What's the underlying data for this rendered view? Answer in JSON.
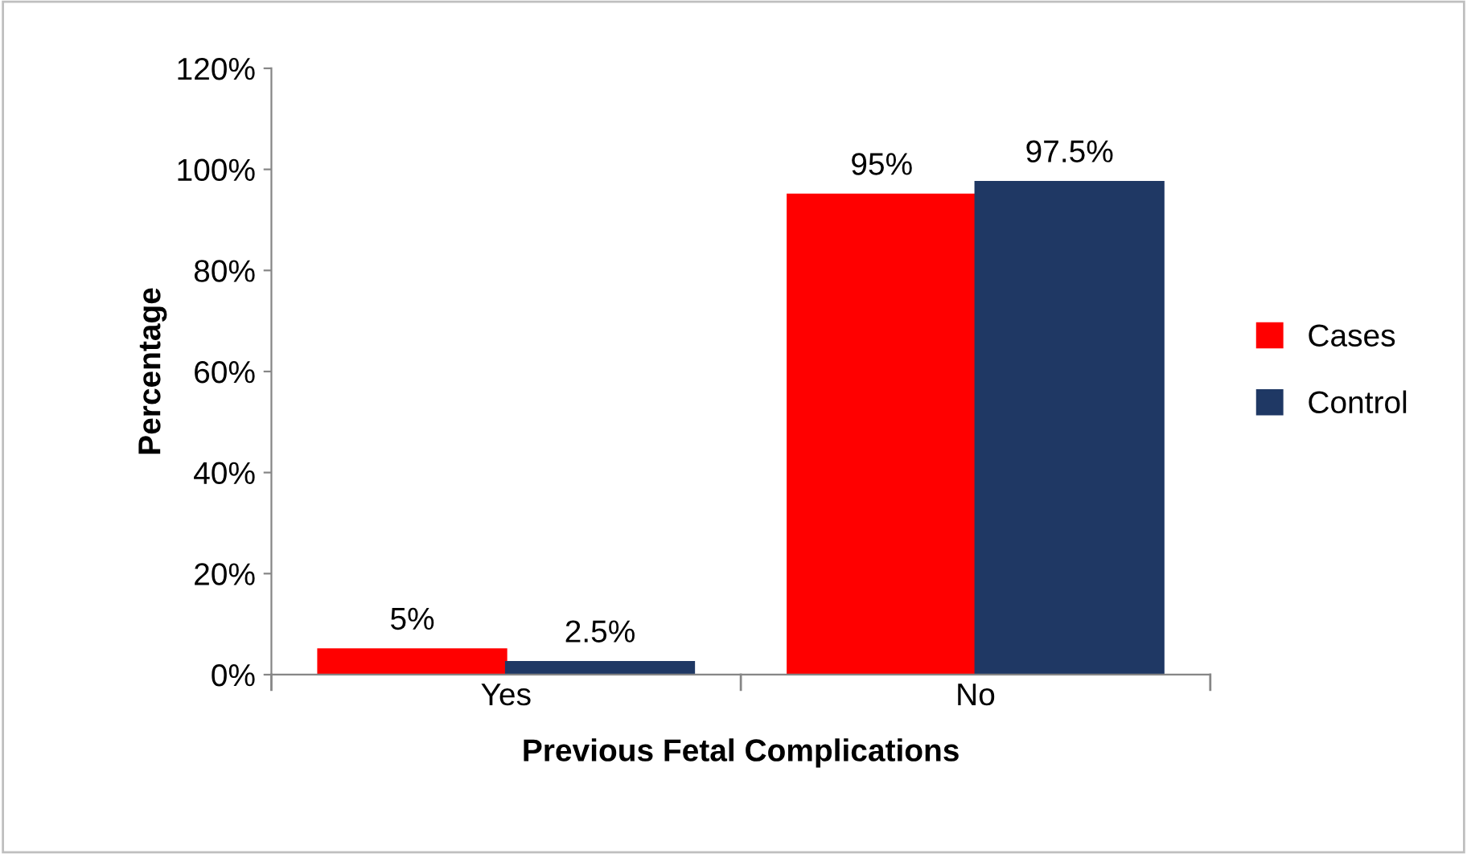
{
  "chart_data": {
    "type": "bar",
    "xlabel": "Previous Fetal Complications",
    "ylabel": "Percentage",
    "categories": [
      "Yes",
      "No"
    ],
    "series": [
      {
        "name": "Cases",
        "color": "#ff0000",
        "values": [
          5,
          95
        ],
        "value_labels": [
          "5%",
          "95%"
        ]
      },
      {
        "name": "Control",
        "color": "#1f3864",
        "values": [
          2.5,
          97.5
        ],
        "value_labels": [
          "2.5%",
          "97.5%"
        ]
      }
    ],
    "ylim": [
      0,
      120
    ],
    "yticks": [
      {
        "value": 0,
        "label": "0%"
      },
      {
        "value": 20,
        "label": "20%"
      },
      {
        "value": 40,
        "label": "40%"
      },
      {
        "value": 60,
        "label": "60%"
      },
      {
        "value": 80,
        "label": "80%"
      },
      {
        "value": 100,
        "label": "100%"
      },
      {
        "value": 120,
        "label": "120%"
      }
    ],
    "grid": false,
    "legend": "right"
  }
}
